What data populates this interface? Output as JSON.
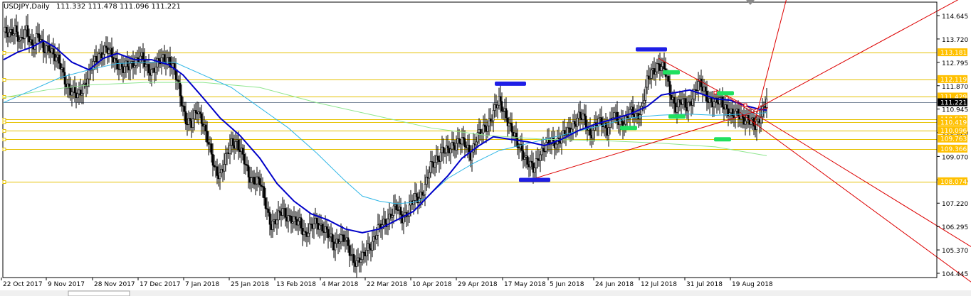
{
  "header": {
    "symbol": "USDJPY,Daily",
    "ohlc": "111.332 111.478 111.096 111.221"
  },
  "colors": {
    "background": "#ffffff",
    "candle": "#000000",
    "grid_level": "#e5c100",
    "ma_fast": "#0000c8",
    "ma_mid": "#2eb6e6",
    "ma_slow": "#8ee68e",
    "trend": "#dd0000",
    "marker_blue": "#1e1ee6",
    "marker_green": "#20e060",
    "current_price_bg": "#000000",
    "level_label_bg": "#ffc000"
  },
  "chart_data": {
    "type": "candlestick",
    "symbol": "USDJPY",
    "timeframe": "Daily",
    "ylim": [
      104.2,
      115.4
    ],
    "price_scale_ticks": [
      "114.645",
      "113.720",
      "112.795",
      "111.870",
      "110.945",
      "110.020",
      "109.070",
      "108.145",
      "107.220",
      "106.295",
      "105.370",
      "104.445"
    ],
    "x_tick_labels": [
      "22 Oct 2017",
      "9 Nov 2017",
      "28 Nov 2017",
      "17 Dec 2017",
      "7 Jan 2018",
      "25 Jan 2018",
      "13 Feb 2018",
      "4 Mar 2018",
      "22 Mar 2018",
      "10 Apr 2018",
      "29 Apr 2018",
      "17 May 2018",
      "5 Jun 2018",
      "24 Jun 2018",
      "12 Jul 2018",
      "31 Jul 2018",
      "19 Aug 2018"
    ],
    "current_price": "111.221",
    "horizontal_levels": [
      "113.181",
      "112.119",
      "111.429",
      "110.537",
      "110.419",
      "110.096",
      "109.763",
      "109.366",
      "108.074"
    ],
    "close_path": [
      [
        0,
        114.0
      ],
      [
        4,
        113.8
      ],
      [
        8,
        114.2
      ],
      [
        12,
        113.6
      ],
      [
        16,
        114.0
      ],
      [
        20,
        113.5
      ],
      [
        24,
        113.9
      ],
      [
        28,
        113.2
      ],
      [
        32,
        113.5
      ],
      [
        36,
        113.0
      ],
      [
        40,
        112.6
      ],
      [
        44,
        112.0
      ],
      [
        48,
        111.6
      ],
      [
        52,
        111.4
      ],
      [
        56,
        111.9
      ],
      [
        60,
        112.3
      ],
      [
        64,
        112.8
      ],
      [
        68,
        113.2
      ],
      [
        72,
        113.3
      ],
      [
        76,
        113.0
      ],
      [
        80,
        112.8
      ],
      [
        84,
        112.5
      ],
      [
        88,
        112.6
      ],
      [
        92,
        112.9
      ],
      [
        96,
        113.0
      ],
      [
        100,
        112.6
      ],
      [
        104,
        112.5
      ],
      [
        108,
        112.7
      ],
      [
        112,
        112.9
      ],
      [
        116,
        113.0
      ],
      [
        120,
        112.4
      ],
      [
        124,
        111.5
      ],
      [
        128,
        110.6
      ],
      [
        132,
        110.3
      ],
      [
        136,
        110.9
      ],
      [
        140,
        110.5
      ],
      [
        144,
        109.5
      ],
      [
        148,
        108.6
      ],
      [
        152,
        108.4
      ],
      [
        156,
        108.9
      ],
      [
        160,
        109.6
      ],
      [
        164,
        109.7
      ],
      [
        168,
        109.0
      ],
      [
        172,
        108.3
      ],
      [
        176,
        108.2
      ],
      [
        180,
        108.0
      ],
      [
        184,
        107.2
      ],
      [
        188,
        106.4
      ],
      [
        192,
        106.5
      ],
      [
        196,
        107.0
      ],
      [
        200,
        106.7
      ],
      [
        204,
        106.4
      ],
      [
        208,
        106.5
      ],
      [
        212,
        106.0
      ],
      [
        216,
        106.2
      ],
      [
        220,
        106.5
      ],
      [
        224,
        106.3
      ],
      [
        228,
        105.9
      ],
      [
        232,
        105.6
      ],
      [
        236,
        105.9
      ],
      [
        240,
        105.7
      ],
      [
        244,
        105.2
      ],
      [
        248,
        104.9
      ],
      [
        252,
        105.0
      ],
      [
        256,
        105.5
      ],
      [
        260,
        105.8
      ],
      [
        264,
        106.2
      ],
      [
        268,
        106.5
      ],
      [
        272,
        106.8
      ],
      [
        276,
        107.0
      ],
      [
        280,
        106.7
      ],
      [
        284,
        106.9
      ],
      [
        288,
        107.3
      ],
      [
        292,
        107.5
      ],
      [
        296,
        107.9
      ],
      [
        300,
        108.6
      ],
      [
        304,
        109.0
      ],
      [
        308,
        109.3
      ],
      [
        312,
        109.2
      ],
      [
        316,
        109.6
      ],
      [
        320,
        109.7
      ],
      [
        324,
        109.5
      ],
      [
        328,
        109.2
      ],
      [
        332,
        109.8
      ],
      [
        336,
        110.0
      ],
      [
        340,
        110.4
      ],
      [
        344,
        110.8
      ],
      [
        348,
        111.2
      ],
      [
        352,
        110.9
      ],
      [
        356,
        110.2
      ],
      [
        360,
        109.6
      ],
      [
        364,
        109.4
      ],
      [
        368,
        108.8
      ],
      [
        372,
        108.5
      ],
      [
        376,
        109.2
      ],
      [
        380,
        109.4
      ],
      [
        384,
        109.6
      ],
      [
        388,
        109.7
      ],
      [
        392,
        109.8
      ],
      [
        396,
        110.0
      ],
      [
        400,
        110.4
      ],
      [
        404,
        110.6
      ],
      [
        408,
        110.5
      ],
      [
        412,
        110.0
      ],
      [
        416,
        110.3
      ],
      [
        420,
        110.4
      ],
      [
        424,
        110.2
      ],
      [
        428,
        110.7
      ],
      [
        432,
        110.4
      ],
      [
        436,
        110.5
      ],
      [
        440,
        110.8
      ],
      [
        444,
        110.6
      ],
      [
        448,
        111.0
      ],
      [
        452,
        112.0
      ],
      [
        456,
        112.4
      ],
      [
        460,
        112.8
      ],
      [
        464,
        112.5
      ],
      [
        468,
        111.6
      ],
      [
        472,
        111.1
      ],
      [
        476,
        111.2
      ],
      [
        480,
        111.0
      ],
      [
        484,
        111.5
      ],
      [
        488,
        111.9
      ],
      [
        492,
        111.7
      ],
      [
        496,
        111.3
      ],
      [
        500,
        111.1
      ],
      [
        504,
        111.3
      ],
      [
        508,
        111.0
      ],
      [
        512,
        110.6
      ],
      [
        516,
        110.8
      ],
      [
        520,
        110.6
      ],
      [
        524,
        110.4
      ],
      [
        528,
        110.3
      ],
      [
        532,
        110.8
      ],
      [
        536,
        111.2
      ]
    ],
    "ma_fast_path": [
      [
        0,
        112.9
      ],
      [
        10,
        113.2
      ],
      [
        20,
        113.4
      ],
      [
        28,
        113.65
      ],
      [
        36,
        113.4
      ],
      [
        48,
        112.8
      ],
      [
        60,
        112.5
      ],
      [
        70,
        112.95
      ],
      [
        80,
        113.15
      ],
      [
        92,
        112.9
      ],
      [
        104,
        112.9
      ],
      [
        116,
        112.7
      ],
      [
        126,
        112.3
      ],
      [
        140,
        111.4
      ],
      [
        152,
        110.6
      ],
      [
        166,
        109.9
      ],
      [
        180,
        109.0
      ],
      [
        192,
        108.0
      ],
      [
        204,
        107.3
      ],
      [
        216,
        106.8
      ],
      [
        228,
        106.55
      ],
      [
        240,
        106.2
      ],
      [
        252,
        106.05
      ],
      [
        264,
        106.2
      ],
      [
        276,
        106.55
      ],
      [
        288,
        106.9
      ],
      [
        300,
        107.6
      ],
      [
        312,
        108.3
      ],
      [
        322,
        109.0
      ],
      [
        334,
        109.5
      ],
      [
        344,
        109.85
      ],
      [
        356,
        109.75
      ],
      [
        368,
        109.65
      ],
      [
        380,
        109.5
      ],
      [
        392,
        109.75
      ],
      [
        404,
        110.1
      ],
      [
        416,
        110.35
      ],
      [
        428,
        110.55
      ],
      [
        440,
        110.75
      ],
      [
        452,
        111.05
      ],
      [
        462,
        111.5
      ],
      [
        472,
        111.6
      ],
      [
        482,
        111.7
      ],
      [
        490,
        111.55
      ],
      [
        500,
        111.35
      ],
      [
        510,
        111.3
      ],
      [
        520,
        111.1
      ],
      [
        530,
        110.95
      ],
      [
        536,
        110.9
      ]
    ],
    "ma_mid_path": [
      [
        0,
        111.2
      ],
      [
        20,
        111.7
      ],
      [
        40,
        112.2
      ],
      [
        60,
        112.5
      ],
      [
        80,
        112.75
      ],
      [
        100,
        112.8
      ],
      [
        120,
        112.8
      ],
      [
        140,
        112.3
      ],
      [
        160,
        111.8
      ],
      [
        180,
        111.0
      ],
      [
        200,
        110.2
      ],
      [
        220,
        109.2
      ],
      [
        240,
        108.1
      ],
      [
        252,
        107.5
      ],
      [
        264,
        107.3
      ],
      [
        276,
        107.2
      ],
      [
        288,
        107.25
      ],
      [
        296,
        107.4
      ],
      [
        312,
        108.2
      ],
      [
        330,
        108.8
      ],
      [
        348,
        109.3
      ],
      [
        366,
        109.55
      ],
      [
        384,
        109.8
      ],
      [
        402,
        110.05
      ],
      [
        420,
        110.3
      ],
      [
        440,
        110.6
      ],
      [
        460,
        110.7
      ],
      [
        480,
        110.75
      ],
      [
        500,
        110.7
      ],
      [
        520,
        110.75
      ],
      [
        536,
        110.8
      ]
    ],
    "ma_slow_path": [
      [
        0,
        111.4
      ],
      [
        30,
        111.7
      ],
      [
        60,
        111.9
      ],
      [
        100,
        112.0
      ],
      [
        140,
        112.0
      ],
      [
        180,
        111.8
      ],
      [
        220,
        111.2
      ],
      [
        260,
        110.7
      ],
      [
        300,
        110.2
      ],
      [
        340,
        109.9
      ],
      [
        380,
        109.75
      ],
      [
        420,
        109.7
      ],
      [
        460,
        109.6
      ],
      [
        500,
        109.45
      ],
      [
        536,
        109.1
      ]
    ],
    "blue_markers": [
      [
        356,
        111.95
      ],
      [
        373,
        108.14
      ],
      [
        455,
        113.31
      ]
    ],
    "green_markers": [
      [
        439,
        110.2
      ],
      [
        469,
        112.4
      ],
      [
        473,
        110.65
      ],
      [
        505,
        109.75
      ],
      [
        507,
        111.57
      ]
    ],
    "trend_lines": [
      [
        [
          373,
          108.2
        ],
        [
          537,
          111.0
        ]
      ],
      [
        [
          460,
          112.95
        ],
        [
          527,
          110.9
        ]
      ],
      [
        [
          517,
          110.82
        ],
        [
          1364,
          104.1
        ]
      ],
      [
        [
          504,
          111.58
        ],
        [
          1364,
          105.5
        ]
      ],
      [
        [
          527,
          110.9
        ],
        [
          1364,
          115.55
        ]
      ],
      [
        [
          527,
          110.3
        ],
        [
          551,
          115.55
        ]
      ]
    ],
    "bars_per_px_note": ""
  }
}
